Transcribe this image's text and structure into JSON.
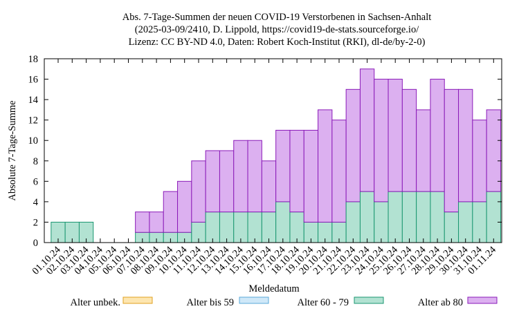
{
  "chart_data": {
    "type": "bar",
    "stacked": true,
    "title": [
      "Abs. 7-Tage-Summen der neuen COVID-19 Verstorbenen in Sachsen-Anhalt",
      "(2025-03-09/2410, D. Lippold, https://covid19-de-stats.sourceforge.io/",
      "Lizenz: CC BY-ND 4.0, Daten: Robert Koch-Institut (RKI), dl-de/by-2-0)"
    ],
    "xlabel": "Meldedatum",
    "ylabel": "Absolute 7-Tage-Summe",
    "ylim": [
      0,
      18
    ],
    "yticks": [
      0,
      2,
      4,
      6,
      8,
      10,
      12,
      14,
      16,
      18
    ],
    "grid": false,
    "legend_position": "bottom",
    "categories": [
      "01.10.24",
      "02.10.24",
      "03.10.24",
      "04.10.24",
      "05.10.24",
      "06.10.24",
      "07.10.24",
      "08.10.24",
      "09.10.24",
      "10.10.24",
      "11.10.24",
      "12.10.24",
      "13.10.24",
      "14.10.24",
      "15.10.24",
      "16.10.24",
      "17.10.24",
      "18.10.24",
      "19.10.24",
      "20.10.24",
      "21.10.24",
      "22.10.24",
      "23.10.24",
      "24.10.24",
      "25.10.24",
      "26.10.24",
      "27.10.24",
      "28.10.24",
      "29.10.24",
      "30.10.24",
      "31.10.24",
      "01.11.24"
    ],
    "series": [
      {
        "name": "Alter unbek.",
        "fill": "#fde6b0",
        "stroke": "#e0a020",
        "values": [
          0,
          0,
          0,
          0,
          0,
          0,
          0,
          0,
          0,
          0,
          0,
          0,
          0,
          0,
          0,
          0,
          0,
          0,
          0,
          0,
          0,
          0,
          0,
          0,
          0,
          0,
          0,
          0,
          0,
          0,
          0,
          0
        ]
      },
      {
        "name": "Alter bis 59",
        "fill": "#cfe8f8",
        "stroke": "#5aa9d8",
        "values": [
          0,
          0,
          0,
          0,
          0,
          0,
          0,
          0,
          0,
          0,
          0,
          0,
          0,
          0,
          0,
          0,
          0,
          0,
          0,
          0,
          0,
          0,
          0,
          0,
          0,
          0,
          0,
          0,
          0,
          0,
          0,
          0
        ]
      },
      {
        "name": "Alter 60 - 79",
        "fill": "#b2e2d2",
        "stroke": "#1a9670",
        "values": [
          2,
          2,
          2,
          0,
          0,
          0,
          1,
          1,
          1,
          1,
          2,
          3,
          3,
          3,
          3,
          3,
          4,
          3,
          2,
          2,
          2,
          4,
          5,
          4,
          5,
          5,
          5,
          5,
          3,
          4,
          4,
          5
        ]
      },
      {
        "name": "Alter ab 80",
        "fill": "#dcb0f0",
        "stroke": "#8a1ab8",
        "values": [
          0,
          0,
          0,
          0,
          0,
          0,
          2,
          2,
          4,
          5,
          6,
          6,
          6,
          7,
          7,
          5,
          7,
          8,
          9,
          11,
          10,
          11,
          12,
          12,
          11,
          10,
          8,
          11,
          12,
          11,
          8,
          8
        ]
      }
    ]
  }
}
